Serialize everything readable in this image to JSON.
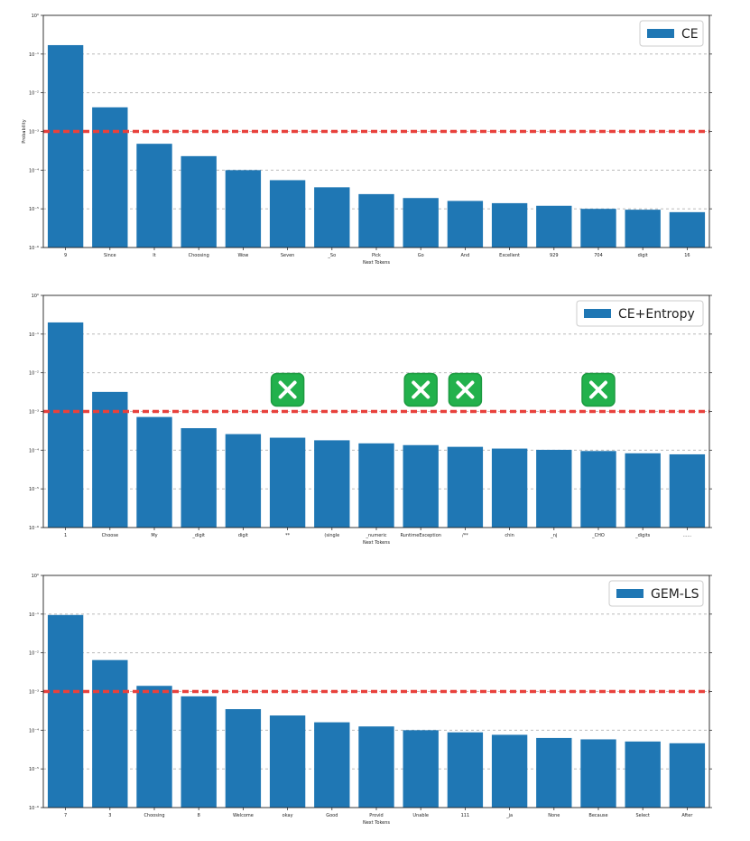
{
  "colors": {
    "bar": "#1f77b4",
    "threshold": "#e8413c",
    "grid": "#b0b0b0",
    "marker_bg": "#22b14c",
    "marker_fg": "#ffffff"
  },
  "threshold_prob": 0.001,
  "chart_data": [
    {
      "type": "bar",
      "legend": "CE",
      "xlabel": "Next Tokens",
      "ylabel": "Probability",
      "yscale": "log",
      "ylim": [
        1e-06,
        1
      ],
      "ytick_labels": [
        "10⁻⁶",
        "10⁻⁵",
        "10⁻⁴",
        "10⁻³",
        "10⁻²",
        "10⁻¹",
        "10⁰"
      ],
      "grid": true,
      "legend_position": "top-right",
      "categories": [
        "9",
        "Since",
        "It",
        "Choosing",
        "Wow",
        "Seven",
        "_So",
        "Pick",
        "Go",
        "And",
        "Excellent",
        "929",
        "704",
        "digit",
        "16"
      ],
      "values": [
        0.17,
        0.0042,
        0.00048,
        0.00023,
        0.0001,
        5.5e-05,
        3.6e-05,
        2.4e-05,
        1.9e-05,
        1.6e-05,
        1.4e-05,
        1.2e-05,
        1e-05,
        9.5e-06,
        8.2e-06
      ]
    },
    {
      "type": "bar",
      "legend": "CE+Entropy",
      "xlabel": "Next Tokens",
      "ylabel": "",
      "yscale": "log",
      "ylim": [
        1e-06,
        1
      ],
      "ytick_labels": [
        "10⁻⁶",
        "10⁻⁵",
        "10⁻⁴",
        "10⁻³",
        "10⁻²",
        "10⁻¹",
        "10⁰"
      ],
      "grid": true,
      "legend_position": "top-right",
      "categories": [
        "1",
        "Choose",
        "My",
        "_digit",
        "digit",
        "**",
        "(single",
        "_numeric",
        "RuntimeException",
        "/**",
        "chin",
        "_nj",
        "_CHO",
        "_digits",
        "......"
      ],
      "values": [
        0.2,
        0.0032,
        0.00072,
        0.00037,
        0.00026,
        0.00021,
        0.00018,
        0.00015,
        0.000135,
        0.000122,
        0.00011,
        0.000102,
        9.5e-05,
        8.3e-05,
        7.8e-05
      ],
      "rejected_tokens": [
        "**",
        "RuntimeException",
        "/**",
        "_CHO"
      ]
    },
    {
      "type": "bar",
      "legend": "GEM-LS",
      "xlabel": "Next Tokens",
      "ylabel": "",
      "yscale": "log",
      "ylim": [
        1e-06,
        1
      ],
      "ytick_labels": [
        "10⁻⁶",
        "10⁻⁵",
        "10⁻⁴",
        "10⁻³",
        "10⁻²",
        "10⁻¹",
        "10⁰"
      ],
      "grid": true,
      "legend_position": "top-right",
      "categories": [
        "7",
        "3",
        "Choosing",
        "8",
        "Welcome",
        "okay",
        "Good",
        "Provid",
        "Unable",
        "111",
        "_ja",
        "None",
        "Because",
        "Select",
        "After"
      ],
      "values": [
        0.095,
        0.0065,
        0.0014,
        0.00075,
        0.00035,
        0.00024,
        0.00016,
        0.000125,
        0.0001,
        8.8e-05,
        7.6e-05,
        6.3e-05,
        5.8e-05,
        5.1e-05,
        4.6e-05
      ]
    }
  ]
}
